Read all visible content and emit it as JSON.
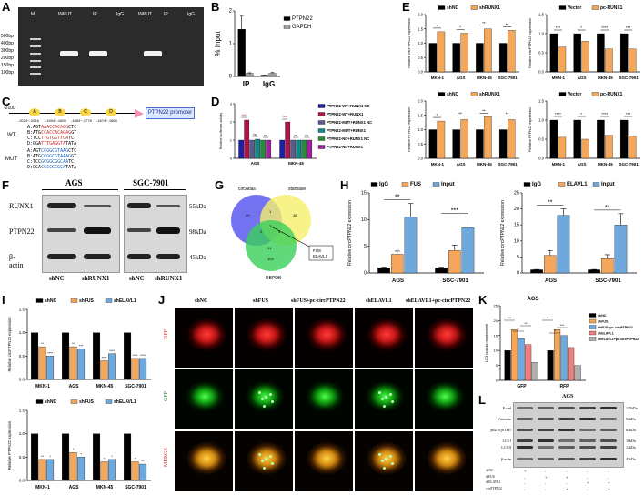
{
  "panels": {
    "A": {
      "label": "A",
      "groups": [
        "PTPN22",
        "GAPDH"
      ],
      "lanes": [
        "M",
        "INPUT",
        "IP",
        "IgG",
        "INPUT",
        "IP",
        "IgG"
      ],
      "markers": [
        "500bp",
        "400bp",
        "300bp",
        "200bp",
        "150bp",
        "100bp"
      ]
    },
    "B": {
      "label": "B",
      "chart_data": {
        "type": "bar",
        "categories": [
          "IP",
          "IgG"
        ],
        "series": [
          {
            "name": "PTPN22",
            "values": [
              1.8,
              0.05
            ],
            "errors": [
              0.5,
              0.0
            ]
          },
          {
            "name": "GAPDH",
            "values": [
              0.12,
              0.12
            ],
            "errors": [
              0.02,
              0.03
            ]
          }
        ],
        "ylabel": "% Input",
        "ylim": [
          0,
          2.5
        ],
        "yticks": [
          "0",
          "1",
          "2"
        ],
        "colors": [
          "#000000",
          "#9e9e9e"
        ]
      }
    },
    "C": {
      "label": "C",
      "start": "-2100",
      "boxes": [
        "A",
        "B",
        "C",
        "D"
      ],
      "ranges": [
        "-2024~-2016",
        "-1904~-1896",
        "-1884~-1776",
        "-1674~-1666"
      ],
      "promoter": "PTPN22 promoter",
      "wt_label": "WT",
      "mut_label": "MUT",
      "wt_seqs": [
        [
          "A:AGT",
          "AAACCACAGG",
          "CTC"
        ],
        [
          "B:ATG",
          "CCACCACAGAG",
          "GT"
        ],
        [
          "C:TCC",
          "TTGTGGTTCA",
          "TC"
        ],
        [
          "D:GGA",
          "TTTGAGGTA",
          "TATA"
        ]
      ],
      "mut_seqs": [
        [
          "A:AGT",
          "CCGGCGTAAG",
          "CTC"
        ],
        [
          "B:ATG",
          "CCGGCGTAAAG",
          "GT"
        ],
        [
          "C:TCC",
          "GCGGCGGCAA",
          "TC"
        ],
        [
          "D:GGA",
          "CGCCGCGCA",
          "TATA"
        ]
      ]
    },
    "D": {
      "label": "D",
      "chart_data": {
        "type": "bar",
        "categories": [
          "AGS",
          "MKN-45"
        ],
        "series": [
          {
            "name": "PTPN22-WT+RUNX1 NC",
            "values": [
              1.0,
              1.0
            ]
          },
          {
            "name": "PTPN22-WT+RUNX1",
            "values": [
              2.1,
              2.0
            ]
          },
          {
            "name": "PTPN22-MUT+RUNX1 NC",
            "values": [
              1.0,
              1.0
            ]
          },
          {
            "name": "PTPN22-MUT+RUNX1",
            "values": [
              1.05,
              1.0
            ]
          },
          {
            "name": "PTPN22-NC+RUNX1 NC",
            "values": [
              1.0,
              1.0
            ]
          },
          {
            "name": "PTPN22-NC+RUNX1",
            "values": [
              1.0,
              1.0
            ]
          }
        ],
        "ylabel": "Relative luciferase activity",
        "ylim": [
          0,
          3
        ],
        "yticks": [
          "0",
          "1",
          "2",
          "3"
        ],
        "annotations": [
          "****",
          "ns",
          "ns",
          "****",
          "ns",
          "ns"
        ],
        "colors": [
          "#1f1fa8",
          "#b0144a",
          "#5b5b8a",
          "#0c8a8a",
          "#2a8a3a",
          "#a020a0"
        ]
      }
    },
    "E": {
      "label": "E",
      "charts": [
        {
          "type": "bar",
          "legend": [
            "shNC",
            "shRUNX1"
          ],
          "categories": [
            "MKN-1",
            "AGS",
            "MKN-45",
            "SGC-7901"
          ],
          "series": [
            {
              "name": "shNC",
              "values": [
                1.0,
                1.0,
                1.0,
                1.0
              ]
            },
            {
              "name": "shRUNX1",
              "values": [
                1.4,
                1.35,
                1.5,
                1.45
              ]
            }
          ],
          "ylabel": "Relative circPTPN22 expression",
          "ylim": [
            0,
            2.0
          ],
          "yticks": [
            "0.0",
            "0.5",
            "1.0",
            "1.5",
            "2.0"
          ],
          "annotations": [
            "*",
            "*",
            "**",
            "**"
          ],
          "colors": [
            "#000000",
            "#f4a65a"
          ]
        },
        {
          "type": "bar",
          "legend": [
            "Vector",
            "pc-RUNX1"
          ],
          "categories": [
            "MKN-1",
            "AGS",
            "MKN-45",
            "SGC-7901"
          ],
          "series": [
            {
              "name": "Vector",
              "values": [
                1.0,
                1.0,
                1.0,
                1.0
              ]
            },
            {
              "name": "pc-RUNX1",
              "values": [
                0.65,
                0.8,
                0.6,
                0.6
              ]
            }
          ],
          "ylabel": "Relative circPTPN22 expression",
          "ylim": [
            0,
            1.5
          ],
          "yticks": [
            "0.0",
            "0.5",
            "1.0",
            "1.5"
          ],
          "annotations": [
            "***",
            "*",
            "****",
            "***"
          ],
          "colors": [
            "#000000",
            "#f4a65a"
          ]
        },
        {
          "type": "bar",
          "legend": [
            "shNC",
            "shRUNX1"
          ],
          "categories": [
            "MKN-1",
            "AGS",
            "MKN-45",
            "SGC-7901"
          ],
          "series": [
            {
              "name": "shNC",
              "values": [
                1.0,
                1.0,
                1.0,
                1.0
              ]
            },
            {
              "name": "shRUNX1",
              "values": [
                1.3,
                1.35,
                1.45,
                1.35
              ]
            }
          ],
          "ylabel": "Relative PTPN22 expression",
          "ylim": [
            0,
            2.0
          ],
          "yticks": [
            "0.0",
            "0.5",
            "1.0",
            "1.5",
            "2.0"
          ],
          "annotations": [
            "*",
            "**",
            "**",
            "**"
          ],
          "colors": [
            "#000000",
            "#f4a65a"
          ]
        },
        {
          "type": "bar",
          "legend": [
            "Vector",
            "pc-RUNX1"
          ],
          "categories": [
            "MKN-1",
            "AGS",
            "MKN-45",
            "SGC-7901"
          ],
          "series": [
            {
              "name": "Vector",
              "values": [
                1.0,
                1.0,
                1.0,
                1.0
              ]
            },
            {
              "name": "pc-RUNX1",
              "values": [
                0.55,
                0.5,
                0.6,
                0.58
              ]
            }
          ],
          "ylabel": "Relative PTPN22 expression",
          "ylim": [
            0,
            1.5
          ],
          "yticks": [
            "0.0",
            "0.5",
            "1.0",
            "1.5"
          ],
          "annotations": [
            "****",
            "*",
            "****",
            "***"
          ],
          "colors": [
            "#000000",
            "#f4a65a"
          ]
        }
      ]
    },
    "F": {
      "label": "F",
      "cells": [
        "AGS",
        "SGC-7901"
      ],
      "proteins": [
        "RUNX1",
        "PTPN22",
        "β-actin"
      ],
      "sizes": [
        "55kDa",
        "98kDa",
        "45kDa"
      ],
      "lanes": [
        "shNC",
        "shRUNX1",
        "shNC",
        "shRUNX1"
      ]
    },
    "G": {
      "label": "G",
      "sets": [
        "circAtlas",
        "starbase",
        "RBPDB"
      ],
      "counts": [
        "59",
        "38",
        "1",
        "2",
        "3",
        "5",
        "14",
        "104"
      ],
      "hits": [
        "FUS",
        "ELAVL1"
      ]
    },
    "H": {
      "label": "H",
      "charts": [
        {
          "type": "bar",
          "legend": [
            "IgG",
            "FUS",
            "Input"
          ],
          "categories": [
            "AGS",
            "SGC-7901"
          ],
          "series": [
            {
              "name": "IgG",
              "values": [
                1.0,
                1.0
              ],
              "errors": [
                0.1,
                0.1
              ]
            },
            {
              "name": "FUS",
              "values": [
                3.5,
                4.2
              ],
              "errors": [
                0.6,
                1.0
              ]
            },
            {
              "name": "Input",
              "values": [
                10.5,
                8.5
              ],
              "errors": [
                2.5,
                2.0
              ]
            }
          ],
          "ylabel": "Relative circPTPN22 expression",
          "ylim": [
            0,
            15
          ],
          "yticks": [
            "0",
            "5",
            "10",
            "15"
          ],
          "annotations": [
            "**",
            "***"
          ],
          "colors": [
            "#000000",
            "#f4a65a",
            "#6fa8dc"
          ]
        },
        {
          "type": "bar",
          "legend": [
            "IgG",
            "ELAVL1",
            "Input"
          ],
          "categories": [
            "AGS",
            "SGC-7901"
          ],
          "series": [
            {
              "name": "IgG",
              "values": [
                1.0,
                1.0
              ],
              "errors": [
                0.1,
                0.1
              ]
            },
            {
              "name": "ELAVL1",
              "values": [
                5.5,
                4.5
              ],
              "errors": [
                1.5,
                1.2
              ]
            },
            {
              "name": "Input",
              "values": [
                18.0,
                15.0
              ],
              "errors": [
                2.0,
                3.5
              ]
            }
          ],
          "ylabel": "Relative circPTPN22 expression",
          "ylim": [
            0,
            25
          ],
          "yticks": [
            "0",
            "5",
            "10",
            "15",
            "20",
            "25"
          ],
          "annotations": [
            "**",
            "**"
          ],
          "colors": [
            "#000000",
            "#f4a65a",
            "#6fa8dc"
          ]
        }
      ]
    },
    "I": {
      "label": "I",
      "charts": [
        {
          "type": "bar",
          "legend": [
            "shNC",
            "shFUS",
            "shELAVL1"
          ],
          "categories": [
            "MKN-1",
            "AGS",
            "MKN-45",
            "SGC-7901"
          ],
          "series": [
            {
              "name": "shNC",
              "values": [
                1.0,
                1.0,
                1.0,
                1.0
              ]
            },
            {
              "name": "shFUS",
              "values": [
                0.7,
                0.7,
                0.4,
                0.45
              ]
            },
            {
              "name": "shELAVL1",
              "values": [
                0.5,
                0.65,
                0.55,
                0.45
              ]
            }
          ],
          "ylabel": "Relative circPTPN22 expression",
          "ylim": [
            0,
            1.5
          ],
          "yticks": [
            "0.0",
            "0.5",
            "1.0",
            "1.5"
          ],
          "annotations": [
            "**",
            "****",
            "**",
            "***",
            "****",
            "****",
            "****",
            "****"
          ],
          "colors": [
            "#000000",
            "#f4a65a",
            "#6fa8dc"
          ]
        },
        {
          "type": "bar",
          "legend": [
            "shNC",
            "shFUS",
            "shELAVL1"
          ],
          "categories": [
            "MKN-1",
            "AGS",
            "MKN-45",
            "SGC-7901"
          ],
          "series": [
            {
              "name": "shNC",
              "values": [
                1.0,
                1.0,
                1.0,
                1.0
              ]
            },
            {
              "name": "shFUS",
              "values": [
                0.45,
                0.6,
                0.4,
                0.4
              ]
            },
            {
              "name": "shELAVL1",
              "values": [
                0.45,
                0.5,
                0.45,
                0.35
              ]
            }
          ],
          "ylabel": "Relative PTPN22 expression",
          "ylim": [
            0,
            1.5
          ],
          "yticks": [
            "0.0",
            "0.5",
            "1.0",
            "1.5"
          ],
          "annotations": [
            "**",
            "*",
            "*",
            "*",
            "*",
            "*",
            "*",
            "**"
          ],
          "colors": [
            "#000000",
            "#f4a65a",
            "#6fa8dc"
          ]
        }
      ]
    },
    "J": {
      "label": "J",
      "columns": [
        "shNC",
        "shFUS",
        "shFUS+pc-circPTPN22",
        "shELAVL1",
        "shELAVL1+pc-circPTPN22"
      ],
      "rows": [
        "RFP",
        "GFP",
        "MERGE"
      ],
      "row_colors": [
        "#e53935",
        "#2e7d32",
        "#c62828"
      ]
    },
    "K": {
      "label": "K",
      "chart_data": {
        "type": "bar",
        "title": "AGS",
        "categories": [
          "GFP",
          "RFP"
        ],
        "series": [
          {
            "name": "shNC",
            "values": [
              10,
              10
            ]
          },
          {
            "name": "shFUS",
            "values": [
              17,
              17
            ]
          },
          {
            "name": "shFUS+pc-circPTPN22",
            "values": [
              14,
              15
            ]
          },
          {
            "name": "shELAVL1",
            "values": [
              12,
              11
            ]
          },
          {
            "name": "shELAVL1+pc-circPTPN22",
            "values": [
              6,
              5
            ]
          }
        ],
        "ylabel": "LC3 puncta number/cell",
        "ylim": [
          0,
          25
        ],
        "yticks": [
          "0",
          "5",
          "10",
          "15",
          "20",
          "25"
        ],
        "annotations": [
          "***",
          "**",
          "*",
          "**",
          "***",
          "*"
        ],
        "colors": [
          "#000000",
          "#f4a65a",
          "#6fa8dc",
          "#f08080",
          "#b0b0b0"
        ]
      }
    },
    "L": {
      "label": "L",
      "title": "AGS",
      "proteins": [
        "E-cad",
        "Vimentin",
        "p62/SQSTM1",
        "LC3 I",
        "LC3 II",
        "β-actin"
      ],
      "sizes": [
        "135kDa",
        "54kDa",
        "62kDa",
        "16kDa",
        "14kDa",
        "45kDa"
      ],
      "conditions": [
        "shNC",
        "shFUS",
        "shELAVL1",
        "circPTPN22"
      ],
      "signs": [
        [
          "+",
          "-",
          "-",
          "-",
          "-"
        ],
        [
          "-",
          "+",
          "+",
          "-",
          "-"
        ],
        [
          "-",
          "-",
          "-",
          "+",
          "+"
        ],
        [
          "-",
          "-",
          "+",
          "-",
          "+"
        ]
      ]
    }
  }
}
